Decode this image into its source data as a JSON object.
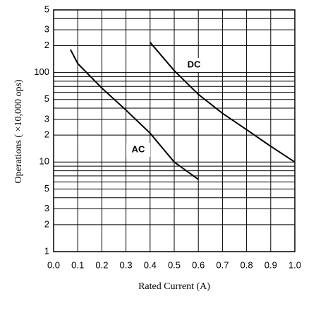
{
  "chart_data": {
    "type": "line",
    "x_label": "Rated Current (A)",
    "y_label": "Operations ( ×10,000 ops)",
    "log_y": true,
    "grid": true,
    "xlim": [
      0,
      1.0
    ],
    "xticks": [
      {
        "value": 0,
        "label": "0.0"
      },
      0.1,
      0.2,
      0.3,
      0.4,
      0.5,
      0.6,
      0.7,
      0.8,
      0.9,
      {
        "value": 1,
        "label": "1.0"
      }
    ],
    "ylim": [
      1,
      500
    ],
    "yticks": [
      1,
      2,
      3,
      5,
      10,
      {
        "value": 20,
        "label": "2"
      },
      {
        "value": 30,
        "label": "3"
      },
      {
        "value": 50,
        "label": "5"
      },
      100,
      {
        "value": 200,
        "label": "2"
      },
      {
        "value": 300,
        "label": "3"
      },
      {
        "value": 500,
        "label": "5"
      }
    ],
    "y_minor_ticks": [
      4,
      6,
      7,
      8,
      9,
      40,
      60,
      70,
      80,
      90,
      400
    ],
    "series": [
      {
        "name": "AC",
        "color": "#000000",
        "x": [
          0.07,
          0.1,
          0.2,
          0.3,
          0.4,
          0.5,
          0.6
        ],
        "values": [
          180,
          126,
          67,
          38,
          21,
          10,
          6.4
        ]
      },
      {
        "name": "DC",
        "color": "#000000",
        "x": [
          0.4,
          0.5,
          0.6,
          0.7,
          0.8,
          0.9,
          1.0
        ],
        "values": [
          217,
          105,
          57,
          35,
          23,
          15,
          10
        ]
      }
    ]
  }
}
